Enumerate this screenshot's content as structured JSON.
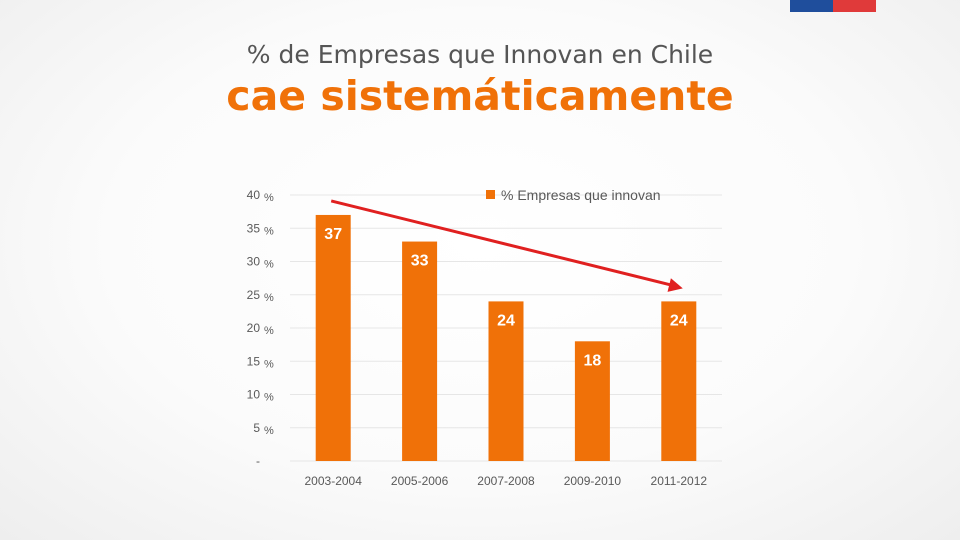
{
  "header": {
    "subtitle": "% de Empresas que Innovan en Chile",
    "headline": "cae sistemáticamente"
  },
  "colors": {
    "accent": "#f07108",
    "bar": "#f07108",
    "arrow": "#e02020",
    "flag_blue": "#1f4e9c",
    "flag_red": "#e03a3a"
  },
  "chart_data": {
    "type": "bar",
    "categories": [
      "2003-2004",
      "2005-2006",
      "2007-2008",
      "2009-2010",
      "2011-2012"
    ],
    "series": [
      {
        "name": "% Empresas que innovan",
        "values": [
          37,
          33,
          24,
          18,
          24
        ]
      }
    ],
    "data_labels": [
      "37",
      "33",
      "24",
      "18",
      "24"
    ],
    "y_ticks": [
      "-",
      "5",
      "10",
      "15",
      "20",
      "25",
      "30",
      "35",
      "40"
    ],
    "y_tick_values": [
      0,
      5,
      10,
      15,
      20,
      25,
      30,
      35,
      40
    ],
    "y_unit": "%",
    "ylim": [
      0,
      40
    ],
    "grid": true,
    "legend_position": "top-right",
    "annotation": {
      "type": "trend-arrow",
      "from_category": "2003-2004",
      "to_category": "2011-2012",
      "direction": "down"
    }
  }
}
